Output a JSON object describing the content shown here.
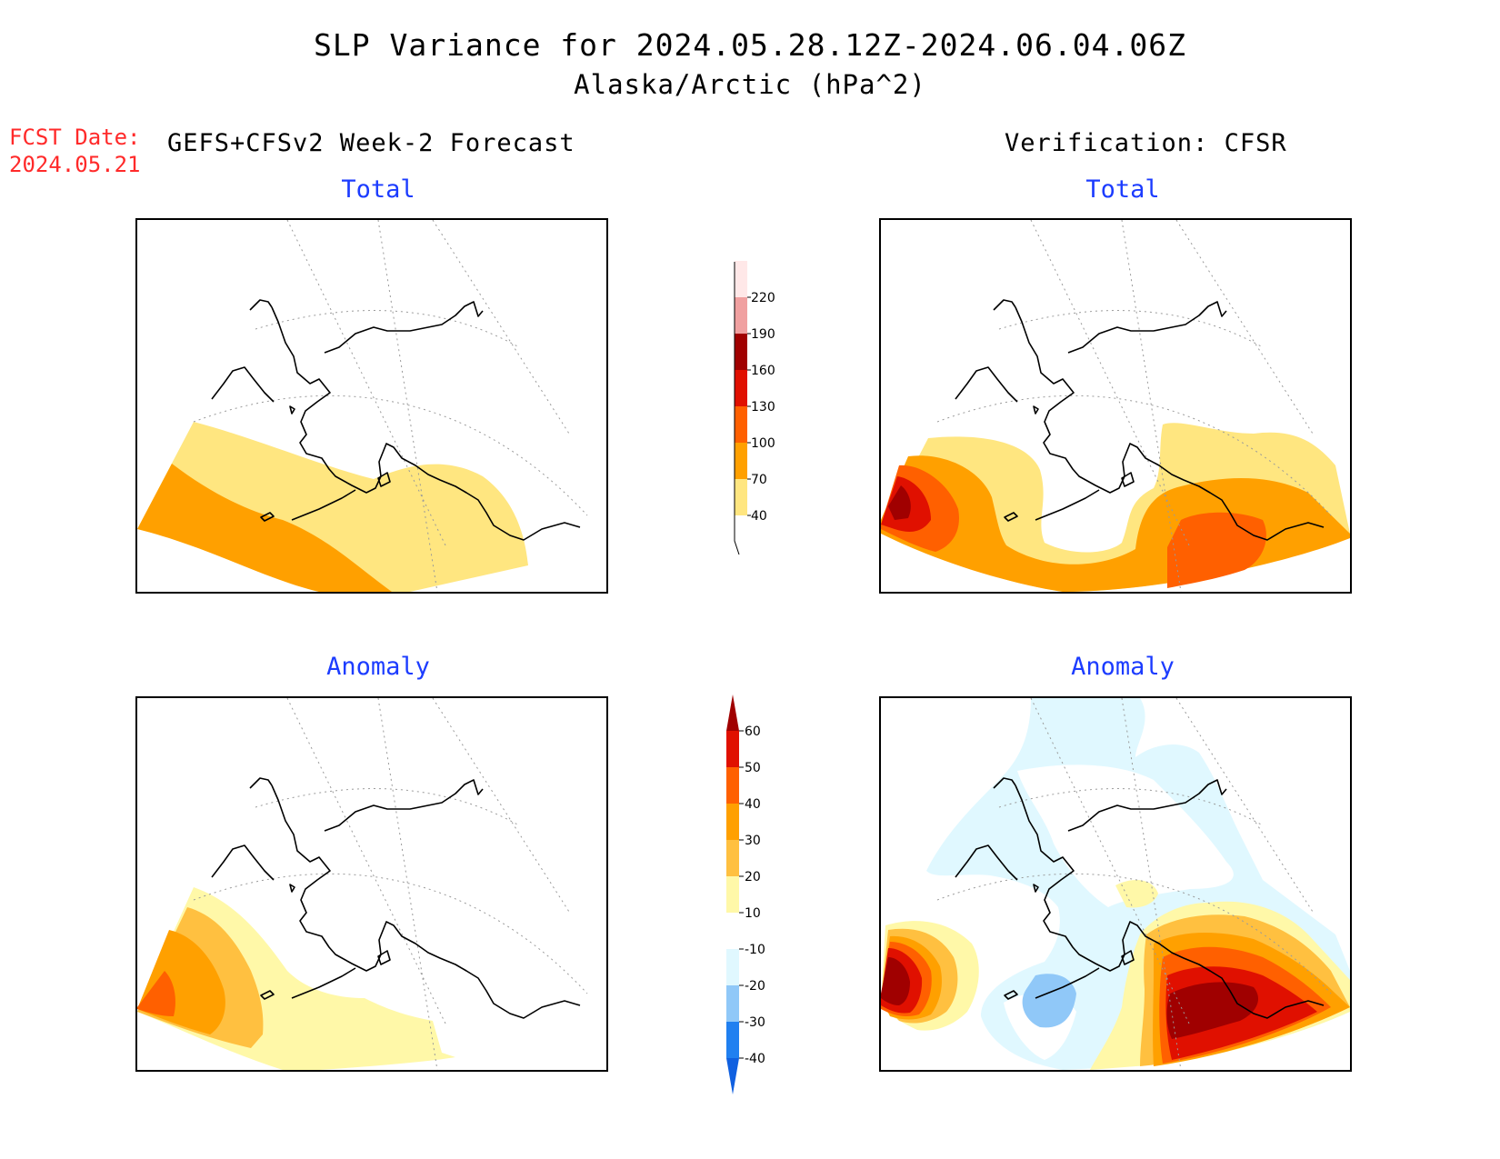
{
  "header": {
    "title": "SLP Variance for 2024.05.28.12Z-2024.06.04.06Z",
    "subtitle": "Alaska/Arctic (hPa^2)",
    "fcst_label": "FCST Date:",
    "fcst_date": "2024.05.21",
    "left_column_title": "GEFS+CFSv2 Week-2 Forecast",
    "right_column_title": "Verification: CFSR"
  },
  "panels": {
    "forecast_total": {
      "title": "Total"
    },
    "verification_total": {
      "title": "Total"
    },
    "forecast_anomaly": {
      "title": "Anomaly"
    },
    "verification_anomaly": {
      "title": "Anomaly"
    }
  },
  "colorbars": {
    "total": {
      "labels": [
        "40",
        "70",
        "100",
        "130",
        "160",
        "190",
        "220"
      ],
      "colors": [
        "#ffe680",
        "#ffa000",
        "#ff6000",
        "#e01000",
        "#a00000",
        "#f0a0a0",
        "#ffe8e8"
      ]
    },
    "anomaly": {
      "labels": [
        "-40",
        "-30",
        "-20",
        "-10",
        "10",
        "20",
        "30",
        "40",
        "50",
        "60"
      ],
      "colors": [
        "#1060e0",
        "#2080f0",
        "#90c8f8",
        "#e0f8ff",
        "#ffffff",
        "#fff8a8",
        "#ffc040",
        "#ffa000",
        "#ff6000",
        "#e01000",
        "#a00000"
      ]
    }
  },
  "map_colors": {
    "yellow": "#ffe680",
    "orange": "#ffa000",
    "dark_orange": "#ff6000",
    "red": "#e01000",
    "dark_red": "#a00000",
    "pale_yellow": "#fff8a8",
    "light_orange": "#ffc040",
    "light_cyan": "#e0f8ff",
    "light_blue": "#90c8f8",
    "coast": "#000000",
    "grid": "#9a9a9a"
  }
}
